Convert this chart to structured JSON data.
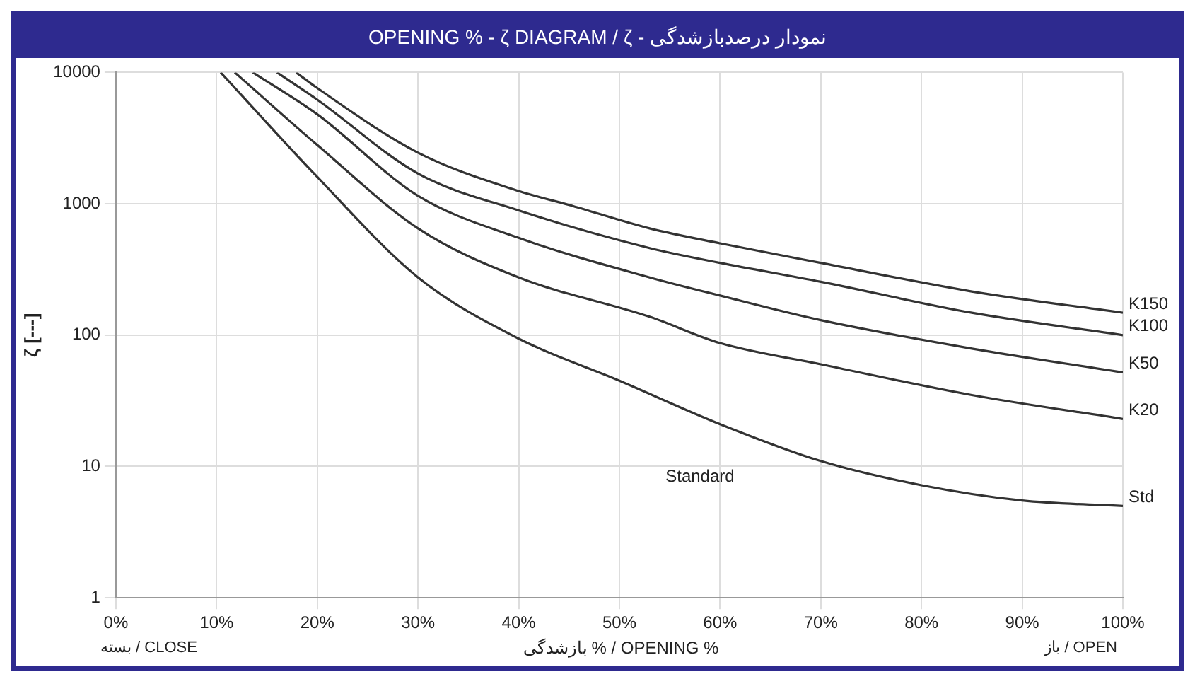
{
  "chart_data": {
    "type": "line",
    "title": "OPENING % - ζ DIAGRAM / ζ - نمودار درصدبازشدگی",
    "xlabel": "بازشدگی % / OPENING %",
    "ylabel": "ζ [---]",
    "log": "y",
    "grid": true,
    "legend": false,
    "marker": "none",
    "line_style": "solid",
    "xlim": [
      0,
      100
    ],
    "xticks": [
      {
        "value": 0,
        "label": "0%"
      },
      {
        "value": 10,
        "label": "10%"
      },
      {
        "value": 20,
        "label": "20%"
      },
      {
        "value": 30,
        "label": "30%"
      },
      {
        "value": 40,
        "label": "40%"
      },
      {
        "value": 50,
        "label": "50%"
      },
      {
        "value": 60,
        "label": "60%"
      },
      {
        "value": 70,
        "label": "70%"
      },
      {
        "value": 80,
        "label": "80%"
      },
      {
        "value": 90,
        "label": "90%"
      },
      {
        "value": 100,
        "label": "100%"
      }
    ],
    "ylim": [
      1,
      10000
    ],
    "yticks": [
      1,
      10,
      100,
      1000,
      10000
    ],
    "series": [
      {
        "name": "K150",
        "color": "#333333",
        "x": [
          17.9,
          20,
          30,
          40,
          45,
          53,
          60,
          70,
          85,
          100
        ],
        "values": [
          10000,
          7600,
          2450,
          1250,
          980,
          650,
          500,
          355,
          215,
          148
        ]
      },
      {
        "name": "K100",
        "color": "#333333",
        "x": [
          16,
          20,
          30,
          40,
          53,
          60,
          70,
          85,
          100
        ],
        "values": [
          10000,
          6200,
          1700,
          890,
          460,
          355,
          255,
          148,
          100
        ]
      },
      {
        "name": "K50",
        "color": "#333333",
        "x": [
          13.6,
          20,
          30,
          40,
          53,
          60,
          70,
          85,
          100
        ],
        "values": [
          10000,
          4800,
          1150,
          550,
          275,
          200,
          130,
          79,
          52
        ]
      },
      {
        "name": "K20",
        "color": "#333333",
        "x": [
          11.8,
          20,
          30,
          40,
          53,
          60,
          70,
          85,
          100
        ],
        "values": [
          10000,
          2800,
          650,
          275,
          138,
          87,
          60,
          35,
          23
        ]
      },
      {
        "name": "Std",
        "color": "#333333",
        "x": [
          10.4,
          20,
          30,
          40,
          50,
          60,
          70,
          80,
          90,
          100
        ],
        "values": [
          10000,
          1600,
          275,
          94,
          45,
          21,
          11,
          7.2,
          5.5,
          5
        ]
      }
    ],
    "annotations": [
      "Standard",
      "بسته / CLOSE",
      "باز / OPEN"
    ]
  }
}
